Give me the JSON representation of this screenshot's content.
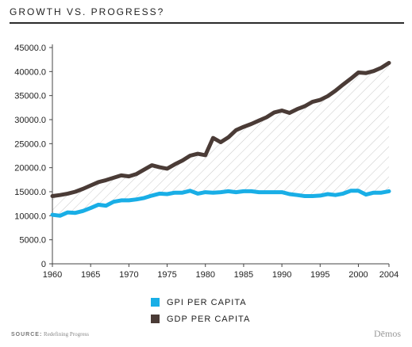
{
  "title": "GROWTH VS. PROGRESS?",
  "source_label": "SOURCE:",
  "source_text": "Redefining Progress",
  "brand": "Dēmos",
  "colors": {
    "gpi": "#19aee6",
    "gdp": "#4a3b36",
    "hatch": "#c9c9c9",
    "axis": "#444444"
  },
  "chart_data": {
    "type": "line",
    "x": [
      1960,
      1961,
      1962,
      1963,
      1964,
      1965,
      1966,
      1967,
      1968,
      1969,
      1970,
      1971,
      1972,
      1973,
      1974,
      1975,
      1976,
      1977,
      1978,
      1979,
      1980,
      1981,
      1982,
      1983,
      1984,
      1985,
      1986,
      1987,
      1988,
      1989,
      1990,
      1991,
      1992,
      1993,
      1994,
      1995,
      1996,
      1997,
      1998,
      1999,
      2000,
      2001,
      2002,
      2003,
      2004
    ],
    "series": [
      {
        "name": "GPI PER CAPITA",
        "values": [
          10200,
          10000,
          10700,
          10600,
          11000,
          11600,
          12300,
          12100,
          12900,
          13200,
          13200,
          13400,
          13700,
          14200,
          14600,
          14500,
          14800,
          14800,
          15200,
          14600,
          14900,
          14800,
          14900,
          15100,
          14900,
          15100,
          15100,
          14900,
          14900,
          14900,
          14900,
          14500,
          14300,
          14100,
          14100,
          14200,
          14500,
          14300,
          14600,
          15200,
          15200,
          14400,
          14800,
          14800,
          15100
        ]
      },
      {
        "name": "GDP PER CAPITA",
        "values": [
          14100,
          14300,
          14600,
          15000,
          15600,
          16300,
          17000,
          17400,
          17900,
          18400,
          18200,
          18700,
          19600,
          20500,
          20100,
          19800,
          20700,
          21500,
          22500,
          22900,
          22600,
          26200,
          25300,
          26300,
          27800,
          28500,
          29100,
          29800,
          30500,
          31500,
          31900,
          31400,
          32200,
          32800,
          33700,
          34100,
          34900,
          36000,
          37300,
          38500,
          39800,
          39700,
          40100,
          40800,
          41800
        ]
      }
    ],
    "y_ticks": [
      "0",
      "5000.0",
      "10000.0",
      "15000.0",
      "20000.0",
      "25000.0",
      "30000.0",
      "35000.0",
      "40000.0",
      "45000.0"
    ],
    "x_ticks": [
      "1960",
      "1965",
      "1970",
      "1975",
      "1980",
      "1985",
      "1990",
      "1995",
      "2000",
      "2004"
    ],
    "ylim": [
      0,
      45000
    ],
    "xlim": [
      1960,
      2004
    ],
    "grid": false,
    "legend_position": "bottom-center",
    "area_between_series": "hatched"
  }
}
